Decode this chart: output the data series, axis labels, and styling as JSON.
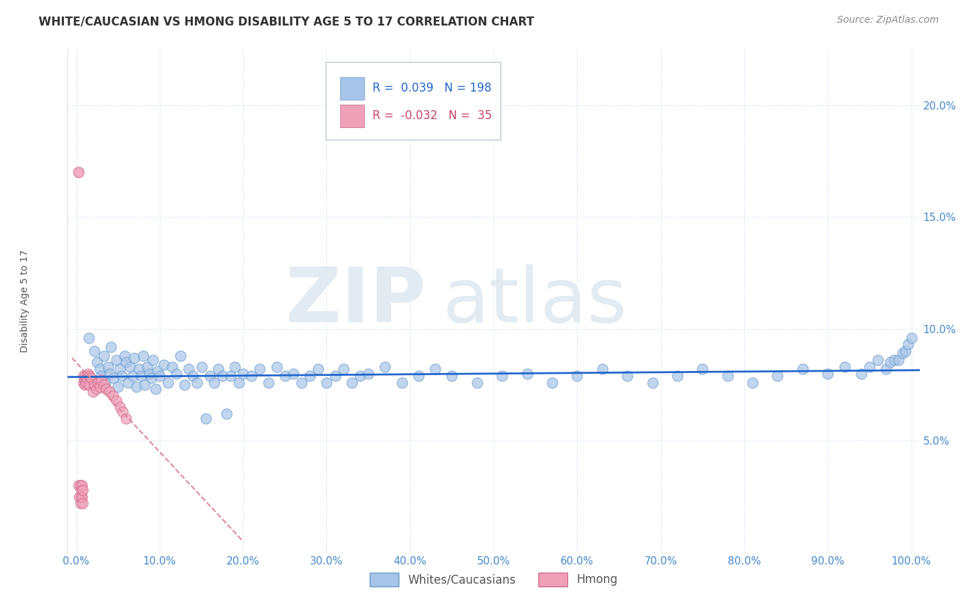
{
  "title": "WHITE/CAUCASIAN VS HMONG DISABILITY AGE 5 TO 17 CORRELATION CHART",
  "source": "Source: ZipAtlas.com",
  "ylabel": "Disability Age 5 to 17",
  "xlim": [
    -0.01,
    1.01
  ],
  "ylim": [
    0.0,
    0.225
  ],
  "yticks": [
    0.05,
    0.1,
    0.15,
    0.2
  ],
  "ytick_labels": [
    "5.0%",
    "10.0%",
    "15.0%",
    "20.0%"
  ],
  "xticks": [
    0.0,
    0.1,
    0.2,
    0.3,
    0.4,
    0.5,
    0.6,
    0.7,
    0.8,
    0.9,
    1.0
  ],
  "xtick_labels": [
    "0.0%",
    "10.0%",
    "20.0%",
    "30.0%",
    "40.0%",
    "50.0%",
    "60.0%",
    "70.0%",
    "80.0%",
    "90.0%",
    "100.0%"
  ],
  "blue_color": "#a8c4e8",
  "pink_color": "#f0a0b8",
  "blue_edge_color": "#6699cc",
  "pink_edge_color": "#cc6688",
  "blue_line_color": "#2266cc",
  "pink_line_color": "#dd8899",
  "tick_color": "#4488cc",
  "watermark_zip": "ZIP",
  "watermark_atlas": "atlas",
  "legend_R_blue": "0.039",
  "legend_N_blue": "198",
  "legend_R_pink": "-0.032",
  "legend_N_pink": "35",
  "title_fontsize": 12,
  "source_fontsize": 10,
  "axis_label_fontsize": 10,
  "tick_fontsize": 11,
  "background_color": "#ffffff",
  "blue_scatter_x": [
    0.015,
    0.022,
    0.025,
    0.028,
    0.03,
    0.033,
    0.035,
    0.038,
    0.04,
    0.042,
    0.045,
    0.048,
    0.05,
    0.052,
    0.055,
    0.058,
    0.06,
    0.062,
    0.065,
    0.068,
    0.07,
    0.072,
    0.075,
    0.078,
    0.08,
    0.082,
    0.085,
    0.088,
    0.09,
    0.092,
    0.095,
    0.098,
    0.1,
    0.105,
    0.11,
    0.115,
    0.12,
    0.125,
    0.13,
    0.135,
    0.14,
    0.145,
    0.15,
    0.155,
    0.16,
    0.165,
    0.17,
    0.175,
    0.18,
    0.185,
    0.19,
    0.195,
    0.2,
    0.21,
    0.22,
    0.23,
    0.24,
    0.25,
    0.26,
    0.27,
    0.28,
    0.29,
    0.3,
    0.31,
    0.32,
    0.33,
    0.34,
    0.35,
    0.37,
    0.39,
    0.41,
    0.43,
    0.45,
    0.48,
    0.51,
    0.54,
    0.57,
    0.6,
    0.63,
    0.66,
    0.69,
    0.72,
    0.75,
    0.78,
    0.81,
    0.84,
    0.87,
    0.9,
    0.92,
    0.94,
    0.95,
    0.96,
    0.97,
    0.975,
    0.98,
    0.985,
    0.99,
    0.993,
    0.996,
    1.0
  ],
  "blue_scatter_y": [
    0.096,
    0.09,
    0.085,
    0.082,
    0.079,
    0.088,
    0.076,
    0.083,
    0.08,
    0.092,
    0.078,
    0.086,
    0.074,
    0.082,
    0.079,
    0.088,
    0.085,
    0.076,
    0.083,
    0.079,
    0.087,
    0.074,
    0.082,
    0.079,
    0.088,
    0.075,
    0.083,
    0.08,
    0.078,
    0.086,
    0.073,
    0.081,
    0.079,
    0.084,
    0.076,
    0.083,
    0.08,
    0.088,
    0.075,
    0.082,
    0.079,
    0.076,
    0.083,
    0.06,
    0.079,
    0.076,
    0.082,
    0.079,
    0.062,
    0.079,
    0.083,
    0.076,
    0.08,
    0.079,
    0.082,
    0.076,
    0.083,
    0.079,
    0.08,
    0.076,
    0.079,
    0.082,
    0.076,
    0.079,
    0.082,
    0.076,
    0.079,
    0.08,
    0.083,
    0.076,
    0.079,
    0.082,
    0.079,
    0.076,
    0.079,
    0.08,
    0.076,
    0.079,
    0.082,
    0.079,
    0.076,
    0.079,
    0.082,
    0.079,
    0.076,
    0.079,
    0.082,
    0.08,
    0.083,
    0.08,
    0.083,
    0.086,
    0.082,
    0.085,
    0.086,
    0.086,
    0.089,
    0.09,
    0.093,
    0.096
  ],
  "pink_scatter_x": [
    0.003,
    0.004,
    0.005,
    0.005,
    0.006,
    0.006,
    0.007,
    0.007,
    0.008,
    0.008,
    0.009,
    0.009,
    0.01,
    0.01,
    0.011,
    0.012,
    0.013,
    0.014,
    0.015,
    0.016,
    0.018,
    0.02,
    0.022,
    0.024,
    0.026,
    0.028,
    0.03,
    0.033,
    0.036,
    0.04,
    0.044,
    0.048,
    0.052,
    0.056,
    0.06
  ],
  "pink_scatter_y": [
    0.03,
    0.025,
    0.03,
    0.022,
    0.028,
    0.025,
    0.03,
    0.025,
    0.028,
    0.022,
    0.076,
    0.079,
    0.077,
    0.075,
    0.079,
    0.076,
    0.078,
    0.08,
    0.075,
    0.079,
    0.078,
    0.072,
    0.075,
    0.073,
    0.076,
    0.074,
    0.077,
    0.075,
    0.073,
    0.072,
    0.07,
    0.068,
    0.065,
    0.063,
    0.06
  ],
  "pink_outlier_x": [
    0.003
  ],
  "pink_outlier_y": [
    0.17
  ]
}
